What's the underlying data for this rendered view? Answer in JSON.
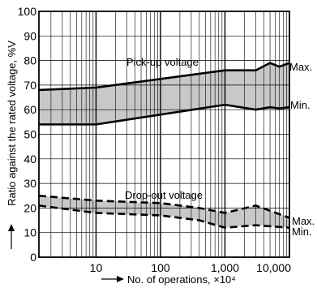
{
  "chart_data": {
    "type": "area",
    "xscale": "log",
    "xlim": [
      1.3,
      10000
    ],
    "ylim": [
      0,
      100
    ],
    "grid": true,
    "xlabel": "No. of operations, ×10⁴",
    "ylabel": "Ratio against the rated voltage, %V",
    "xticks": [
      10,
      100,
      1000,
      10000
    ],
    "xtick_labels": [
      "10",
      "100",
      "1,000",
      "10,000"
    ],
    "yticks": [
      0,
      10,
      20,
      30,
      40,
      50,
      60,
      70,
      80,
      90,
      100
    ],
    "series": [
      {
        "group": "pickup",
        "bound": "max",
        "style": "solid",
        "x": [
          1.3,
          10,
          1000,
          3000,
          5000,
          7000,
          10000
        ],
        "y": [
          68,
          69,
          76,
          76,
          79,
          77.5,
          79
        ]
      },
      {
        "group": "pickup",
        "bound": "min",
        "style": "solid",
        "x": [
          1.3,
          10,
          1000,
          3000,
          5000,
          7000,
          10000
        ],
        "y": [
          54,
          54,
          62,
          60,
          61,
          60.5,
          61
        ]
      },
      {
        "group": "dropout",
        "bound": "max",
        "style": "dashed",
        "x": [
          1.3,
          10,
          100,
          400,
          1000,
          3000,
          10000
        ],
        "y": [
          25,
          23,
          22,
          20,
          18,
          21,
          16
        ]
      },
      {
        "group": "dropout",
        "bound": "min",
        "style": "dashed",
        "x": [
          1.3,
          10,
          100,
          400,
          1000,
          3000,
          10000
        ],
        "y": [
          21,
          18,
          17,
          15,
          12,
          13,
          12
        ]
      }
    ],
    "annotations": {
      "pickup": "Pick-up voltage",
      "dropout": "Drop-out voltage",
      "pickup_max": "Max.",
      "pickup_min": "Min.",
      "dropout_max": "Max.",
      "dropout_min": "Min."
    },
    "colors": {
      "band": "#c8c8c8",
      "line": "#000000",
      "grid": "#000000"
    }
  }
}
